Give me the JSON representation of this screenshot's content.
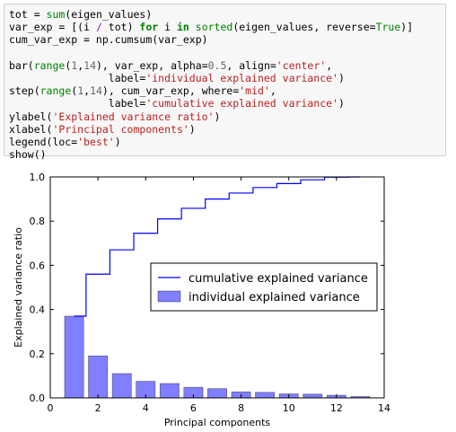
{
  "code_cell": {
    "lines": [
      [
        {
          "t": "tot = "
        },
        {
          "t": "sum",
          "c": "builtin"
        },
        {
          "t": "(eigen_values)"
        }
      ],
      [
        {
          "t": "var_exp = [(i "
        },
        {
          "t": "/",
          "c": "op"
        },
        {
          "t": " tot) "
        },
        {
          "t": "for",
          "c": "kw"
        },
        {
          "t": " i "
        },
        {
          "t": "in",
          "c": "kw"
        },
        {
          "t": " "
        },
        {
          "t": "sorted",
          "c": "builtin"
        },
        {
          "t": "(eigen_values, reverse="
        },
        {
          "t": "True",
          "c": "const"
        },
        {
          "t": ")]"
        }
      ],
      [
        {
          "t": "cum_var_exp = np.cumsum(var_exp)"
        }
      ],
      [
        {
          "t": ""
        }
      ],
      [
        {
          "t": "bar("
        },
        {
          "t": "range",
          "c": "builtin"
        },
        {
          "t": "("
        },
        {
          "t": "1",
          "c": "num"
        },
        {
          "t": ","
        },
        {
          "t": "14",
          "c": "num"
        },
        {
          "t": "), var_exp, alpha="
        },
        {
          "t": "0.5",
          "c": "num"
        },
        {
          "t": ", align="
        },
        {
          "t": "'center'",
          "c": "str"
        },
        {
          "t": ","
        }
      ],
      [
        {
          "t": "                label="
        },
        {
          "t": "'individual explained variance'",
          "c": "str"
        },
        {
          "t": ")"
        }
      ],
      [
        {
          "t": "step("
        },
        {
          "t": "range",
          "c": "builtin"
        },
        {
          "t": "("
        },
        {
          "t": "1",
          "c": "num"
        },
        {
          "t": ","
        },
        {
          "t": "14",
          "c": "num"
        },
        {
          "t": "), cum_var_exp, where="
        },
        {
          "t": "'mid'",
          "c": "str"
        },
        {
          "t": ","
        }
      ],
      [
        {
          "t": "                label="
        },
        {
          "t": "'cumulative explained variance'",
          "c": "str"
        },
        {
          "t": ")"
        }
      ],
      [
        {
          "t": "ylabel("
        },
        {
          "t": "'Explained variance ratio'",
          "c": "str"
        },
        {
          "t": ")"
        }
      ],
      [
        {
          "t": "xlabel("
        },
        {
          "t": "'Principal components'",
          "c": "str"
        },
        {
          "t": ")"
        }
      ],
      [
        {
          "t": "legend(loc="
        },
        {
          "t": "'best'",
          "c": "str"
        },
        {
          "t": ")"
        }
      ],
      [
        {
          "t": "show()"
        }
      ]
    ]
  },
  "colors": {
    "bar_fill": "#7f7fff",
    "bar_edge": "#000000",
    "step_line": "#0000ff",
    "code_bg": "#f7f7f7"
  },
  "chart_data": {
    "type": "bar",
    "x": [
      1,
      2,
      3,
      4,
      5,
      6,
      7,
      8,
      9,
      10,
      11,
      12,
      13
    ],
    "series": [
      {
        "name": "individual explained variance",
        "kind": "bar",
        "values": [
          0.37,
          0.19,
          0.11,
          0.075,
          0.065,
          0.048,
          0.042,
          0.027,
          0.025,
          0.018,
          0.017,
          0.012,
          0.006
        ]
      },
      {
        "name": "cumulative explained variance",
        "kind": "step",
        "values": [
          0.37,
          0.56,
          0.67,
          0.745,
          0.81,
          0.858,
          0.9,
          0.927,
          0.952,
          0.97,
          0.987,
          0.999,
          1.0
        ]
      }
    ],
    "xlabel": "Principal components",
    "ylabel": "Explained variance ratio",
    "xlim": [
      0,
      14
    ],
    "ylim": [
      0,
      1.0
    ],
    "xticks": [
      0,
      2,
      4,
      6,
      8,
      10,
      12,
      14
    ],
    "yticks": [
      0.0,
      0.2,
      0.4,
      0.6,
      0.8,
      1.0
    ],
    "xtick_labels": [
      "0",
      "2",
      "4",
      "6",
      "8",
      "10",
      "12",
      "14"
    ],
    "ytick_labels": [
      "0.0",
      "0.2",
      "0.4",
      "0.6",
      "0.8",
      "1.0"
    ],
    "legend_loc": "center-right",
    "legend_order": [
      "cumulative explained variance",
      "individual explained variance"
    ],
    "grid": false
  }
}
